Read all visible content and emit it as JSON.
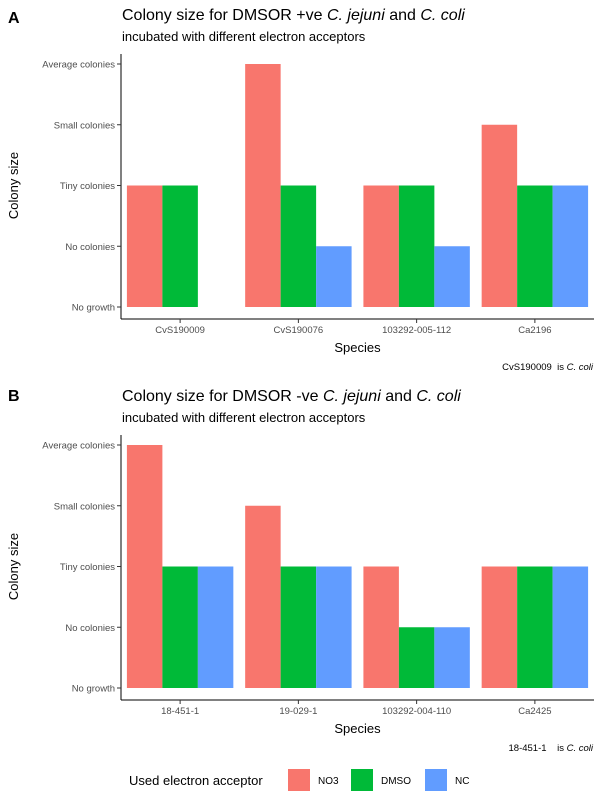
{
  "figure": {
    "legend": {
      "title": "Used electron acceptor",
      "position": "bottom",
      "entries": [
        {
          "name": "NO3",
          "color": "#F8766D"
        },
        {
          "name": "DMSO",
          "color": "#00BA38"
        },
        {
          "name": "NC",
          "color": "#619CFF"
        }
      ]
    }
  },
  "chart_data": [
    {
      "type": "bar",
      "panel": "A",
      "title_prefix": "Colony size for DMSOR +ve ",
      "title_italic_1": "C. jejuni",
      "title_mid": " and ",
      "title_italic_2": "C. coli",
      "subtitle": "incubated with different electron acceptors",
      "xlabel": "Species",
      "ylabel": "Colony size",
      "levels": [
        "No growth",
        "No colonies",
        "Tiny colonies",
        "Small colonies",
        "Average colonies"
      ],
      "ylim": [
        0,
        4
      ],
      "categories": [
        "CvS190009",
        "CvS190076",
        "103292-005-112",
        "Ca2196"
      ],
      "series": [
        {
          "name": "NO3",
          "values": [
            2,
            4,
            2,
            3
          ]
        },
        {
          "name": "DMSO",
          "values": [
            2,
            2,
            2,
            2
          ]
        },
        {
          "name": "NC",
          "values": [
            0,
            1,
            1,
            2
          ]
        }
      ],
      "caption_prefix": "CvS190009  is ",
      "caption_italic": "C. coli"
    },
    {
      "type": "bar",
      "panel": "B",
      "title_prefix": "Colony size for DMSOR -ve  ",
      "title_italic_1": "C. jejuni",
      "title_mid": " and ",
      "title_italic_2": "C. coli",
      "subtitle": "incubated with different electron acceptors",
      "xlabel": "Species",
      "ylabel": "Colony size",
      "levels": [
        "No growth",
        "No colonies",
        "Tiny colonies",
        "Small colonies",
        "Average colonies"
      ],
      "ylim": [
        0,
        4
      ],
      "categories": [
        "18-451-1",
        "19-029-1",
        "103292-004-110",
        "Ca2425"
      ],
      "series": [
        {
          "name": "NO3",
          "values": [
            4,
            3,
            2,
            2
          ]
        },
        {
          "name": "DMSO",
          "values": [
            2,
            2,
            1,
            2
          ]
        },
        {
          "name": "NC",
          "values": [
            2,
            2,
            1,
            2
          ]
        }
      ],
      "caption_prefix": "18-451-1    is ",
      "caption_italic": "C. coli"
    }
  ]
}
